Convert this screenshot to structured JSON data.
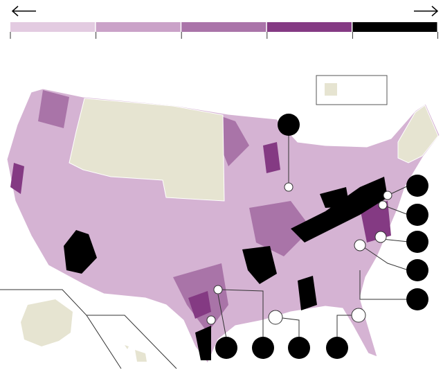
{
  "legend": {
    "colors": [
      "#e3cbe1",
      "#caa2c8",
      "#aa74a9",
      "#843a83",
      "#000000"
    ]
  },
  "no_data_color": "#e6e4d1"
}
